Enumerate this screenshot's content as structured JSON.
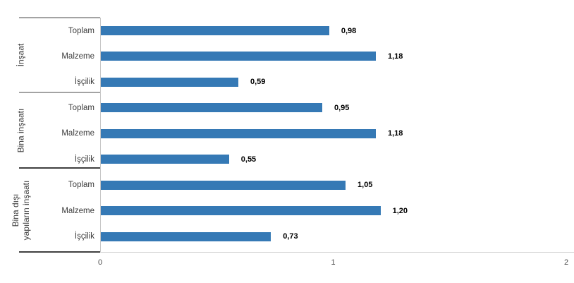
{
  "chart_data": {
    "type": "bar",
    "orientation": "horizontal",
    "title": "",
    "xlabel": "",
    "ylabel": "",
    "xlim": [
      0,
      2
    ],
    "grid": false,
    "legend": false,
    "bar_color": "#3579b5",
    "xticks": [
      {
        "value": 0,
        "label": "0"
      },
      {
        "value": 1,
        "label": "1"
      },
      {
        "value": 2,
        "label": "2"
      }
    ],
    "groups": [
      {
        "label": "İnşaat",
        "label_lines": [
          "İnşaat"
        ],
        "rows": [
          {
            "label": "Toplam",
            "value": 0.98,
            "value_label": "0,98"
          },
          {
            "label": "Malzeme",
            "value": 1.18,
            "value_label": "1,18"
          },
          {
            "label": "İşçilik",
            "value": 0.59,
            "value_label": "0,59"
          }
        ]
      },
      {
        "label": "Bina inşaatı",
        "label_lines": [
          "Bina inşaatı"
        ],
        "rows": [
          {
            "label": "Toplam",
            "value": 0.95,
            "value_label": "0,95"
          },
          {
            "label": "Malzeme",
            "value": 1.18,
            "value_label": "1,18"
          },
          {
            "label": "İşçilik",
            "value": 0.55,
            "value_label": "0,55"
          }
        ]
      },
      {
        "label": "Bina dışı yapıların inşaatı",
        "label_lines": [
          "Bina dışı",
          "yapıların inşaatı"
        ],
        "rows": [
          {
            "label": "Toplam",
            "value": 1.05,
            "value_label": "1,05"
          },
          {
            "label": "Malzeme",
            "value": 1.2,
            "value_label": "1,20"
          },
          {
            "label": "İşçilik",
            "value": 0.73,
            "value_label": "0,73"
          }
        ]
      }
    ]
  }
}
